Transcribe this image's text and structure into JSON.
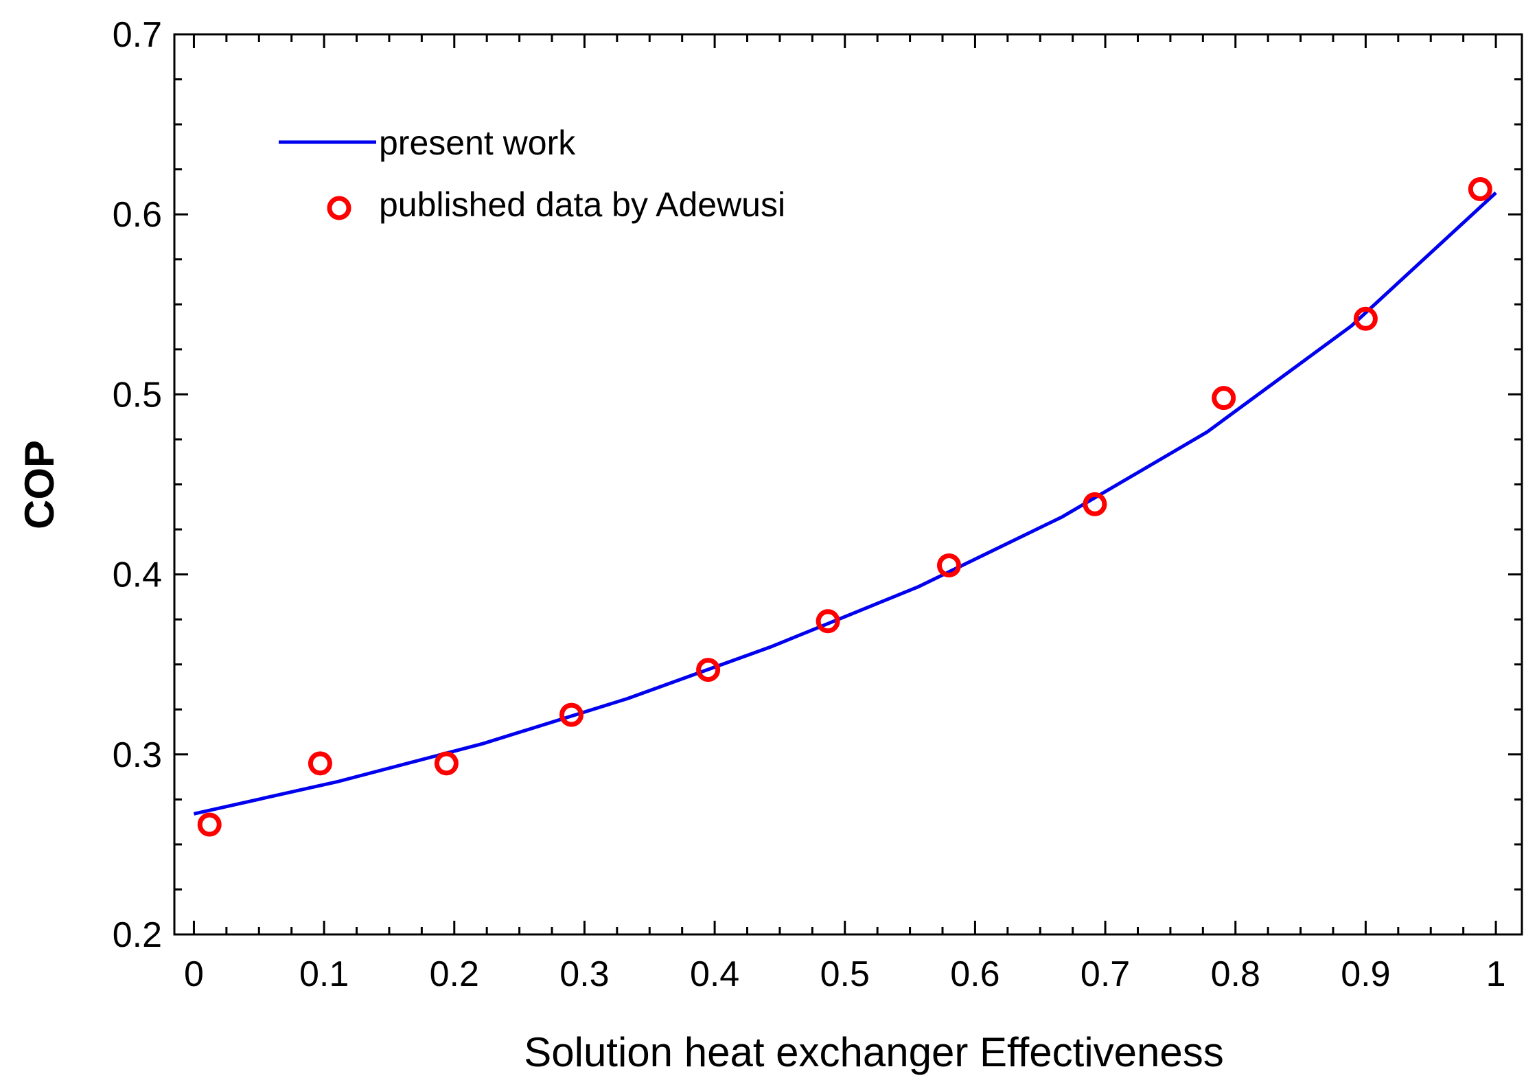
{
  "chart_data": {
    "type": "line",
    "title": "",
    "xlabel": "Solution heat exchanger Effectiveness",
    "ylabel": "COP",
    "xlim": [
      -0.015,
      1.02
    ],
    "ylim": [
      0.2,
      0.7
    ],
    "xticks": [
      0,
      0.1,
      0.2,
      0.3,
      0.4,
      0.5,
      0.6,
      0.7,
      0.8,
      0.9,
      1
    ],
    "xtick_labels": [
      "0",
      "0.1",
      "0.2",
      "0.3",
      "0.4",
      "0.5",
      "0.6",
      "0.7",
      "0.8",
      "0.9",
      "1"
    ],
    "yticks": [
      0.2,
      0.3,
      0.4,
      0.5,
      0.6,
      0.7
    ],
    "ytick_labels": [
      "0.2",
      "0.3",
      "0.4",
      "0.5",
      "0.6",
      "0.7"
    ],
    "grid": false,
    "legend_position": "top-left",
    "series": [
      {
        "name": "present work",
        "kind": "line",
        "color": "#0000ee",
        "x": [
          0,
          0.111,
          0.222,
          0.333,
          0.444,
          0.556,
          0.667,
          0.778,
          0.889,
          1
        ],
        "y": [
          0.267,
          0.285,
          0.306,
          0.331,
          0.36,
          0.393,
          0.432,
          0.479,
          0.538,
          0.612
        ]
      },
      {
        "name": "published data by Adewusi",
        "kind": "scatter",
        "color": "#ff0000",
        "marker": "open-circle",
        "x": [
          0.012,
          0.097,
          0.194,
          0.29,
          0.395,
          0.487,
          0.58,
          0.692,
          0.791,
          0.9,
          0.988
        ],
        "y": [
          0.261,
          0.295,
          0.295,
          0.322,
          0.347,
          0.374,
          0.405,
          0.439,
          0.498,
          0.542,
          0.614
        ]
      }
    ]
  }
}
